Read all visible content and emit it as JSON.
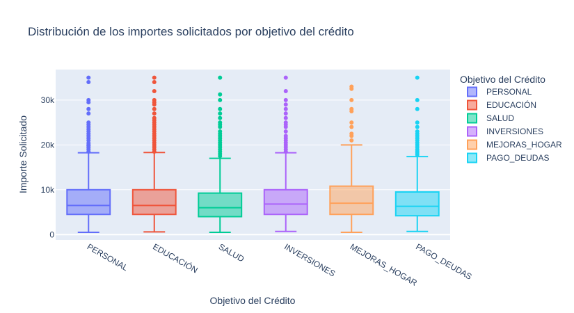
{
  "chart_data": {
    "type": "box",
    "title": "Distribución de los importes solicitados por objetivo del crédito",
    "xlabel": "Objetivo del Crédito",
    "ylabel": "Importe Solicitado",
    "ylim": [
      -1200,
      36800
    ],
    "y_ticks": [
      0,
      10000,
      20000,
      30000
    ],
    "y_tick_labels": [
      "0",
      "10k",
      "20k",
      "30k"
    ],
    "grid": true,
    "legend": {
      "title": "Objetivo del Crédito",
      "position": "right"
    },
    "series": [
      {
        "name": "PERSONAL",
        "color": "#636efa",
        "min": 500,
        "q1": 4500,
        "median": 6500,
        "q3": 10000,
        "max": 18250,
        "outliers": [
          18500,
          19000,
          19400,
          19800,
          20000,
          20400,
          21000,
          21500,
          22000,
          22500,
          23000,
          23500,
          24000,
          24500,
          25000,
          27000,
          28000,
          29500,
          30000,
          34000,
          35000
        ]
      },
      {
        "name": "EDUCACIÓN",
        "color": "#ef553b",
        "min": 600,
        "q1": 4500,
        "median": 6500,
        "q3": 10000,
        "max": 18300,
        "outliers": [
          18500,
          19000,
          19500,
          20000,
          20500,
          21000,
          21500,
          22000,
          22500,
          23000,
          23500,
          24000,
          24500,
          25000,
          25500,
          26000,
          27000,
          28000,
          29000,
          29500,
          30000,
          32000,
          34000,
          35000
        ]
      },
      {
        "name": "SALUD",
        "color": "#00cc96",
        "min": 500,
        "q1": 4000,
        "median": 6000,
        "q3": 9250,
        "max": 17000,
        "outliers": [
          17500,
          18000,
          18500,
          19000,
          19500,
          20000,
          20500,
          21000,
          21500,
          22000,
          22500,
          23000,
          24000,
          24500,
          25000,
          26000,
          27000,
          28000,
          30000,
          31250,
          35000
        ]
      },
      {
        "name": "INVERSIONES",
        "color": "#ab63fa",
        "min": 700,
        "q1": 4500,
        "median": 6800,
        "q3": 10000,
        "max": 18250,
        "outliers": [
          18500,
          19000,
          19500,
          20000,
          20500,
          21000,
          21500,
          22000,
          23000,
          24000,
          24500,
          25000,
          26000,
          27000,
          28000,
          29000,
          30000,
          32000,
          35000
        ]
      },
      {
        "name": "MEJORAS_HOGAR",
        "color": "#ffa15a",
        "min": 500,
        "q1": 4500,
        "median": 7000,
        "q3": 10800,
        "max": 20000,
        "outliers": [
          21000,
          22000,
          22500,
          24000,
          25000,
          27500,
          28000,
          30000,
          32500,
          33000
        ]
      },
      {
        "name": "PAGO_DEUDAS",
        "color": "#19d3f3",
        "min": 700,
        "q1": 4200,
        "median": 6300,
        "q3": 9500,
        "max": 17400,
        "outliers": [
          17800,
          18200,
          18600,
          19000,
          19500,
          20000,
          20500,
          21000,
          21500,
          22000,
          22500,
          23000,
          24000,
          25000,
          28000,
          30000,
          35000
        ]
      }
    ]
  }
}
